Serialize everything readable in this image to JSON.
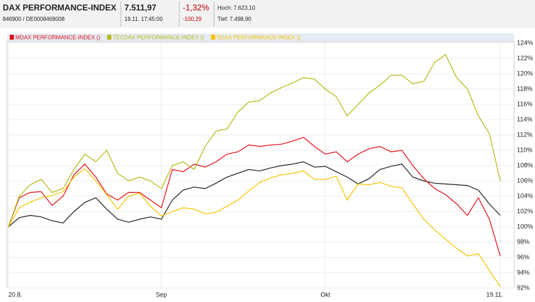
{
  "header": {
    "title": "DAX PERFORMANCE-INDEX",
    "ids": "846900 / DE0008469008",
    "price": "7.511,97",
    "time": "19.11. 17:45:00",
    "change_pct": "-1,32%",
    "change_abs": "-100,29",
    "high": "Hoch: 7.623,10",
    "low": "Tief: 7.498,90"
  },
  "chart_data": {
    "type": "line",
    "categories": [
      "20.8.",
      null,
      null,
      null,
      null,
      null,
      null,
      null,
      null,
      null,
      null,
      null,
      null,
      null,
      "Sep",
      null,
      null,
      null,
      null,
      null,
      null,
      null,
      null,
      null,
      null,
      null,
      null,
      null,
      null,
      "Okt",
      null,
      null,
      null,
      null,
      null,
      null,
      null,
      null,
      null,
      null,
      null,
      null,
      null,
      null,
      null,
      "19.11."
    ],
    "series": [
      {
        "color": "#222222",
        "values": [
          100,
          101.2,
          101.5,
          101.3,
          100.8,
          100.5,
          102,
          103.2,
          103.8,
          102.3,
          101,
          100.6,
          101,
          101.3,
          101,
          103.5,
          104.8,
          105.2,
          105,
          105.7,
          106.5,
          107,
          107.5,
          107.3,
          107.7,
          108,
          108.2,
          108.5,
          107.8,
          107.9,
          107.2,
          106.5,
          105.6,
          106.3,
          107.5,
          107.9,
          108.2,
          106.5,
          106,
          105.7,
          105.6,
          105.5,
          105.4,
          104.8,
          103,
          101.5
        ]
      },
      {
        "name": "MDAX PERFORMANCE-INDEX ()",
        "color": "#e0101a",
        "values": [
          100,
          103.8,
          104.5,
          104.6,
          102.8,
          104,
          106.8,
          108.2,
          106.5,
          104.3,
          103.5,
          104.5,
          104.5,
          103.5,
          102.5,
          107.5,
          107.2,
          108.2,
          107.8,
          108.5,
          109.5,
          109.8,
          110.7,
          110.5,
          110.7,
          110.8,
          111.2,
          111.7,
          110.5,
          109.5,
          109.8,
          108.5,
          109.5,
          110.2,
          110.5,
          109.8,
          110,
          108,
          106.3,
          105,
          104.2,
          103,
          101.5,
          103.8,
          101,
          96.2
        ]
      },
      {
        "name": "TECDAX PERFORMANCE-INDEX ()",
        "color": "#b8b818",
        "values": [
          100,
          104,
          105.5,
          106.2,
          104.5,
          105,
          107.5,
          109.5,
          108.5,
          110,
          107,
          106,
          106.5,
          106,
          105,
          108,
          108.5,
          107.5,
          110.5,
          112.5,
          112.8,
          115,
          116.3,
          116.5,
          117.5,
          118.2,
          118.8,
          119.5,
          119.3,
          118,
          117,
          114.5,
          116,
          117.5,
          118.5,
          119.8,
          119.8,
          118.7,
          119,
          121.5,
          122.5,
          119.5,
          118,
          114.5,
          112.2,
          106
        ]
      },
      {
        "name": "SDAX PERFORMANCE-INDEX ()",
        "color": "#f5c400",
        "values": [
          100,
          102.5,
          103.2,
          103.8,
          104.1,
          104.6,
          106.5,
          107.6,
          106,
          104.2,
          102.3,
          104,
          104.4,
          102.7,
          101.4,
          102,
          102.5,
          102.3,
          101.7,
          101.9,
          102.7,
          103.5,
          104.7,
          105.8,
          106.4,
          106.8,
          107,
          107.3,
          106.2,
          106.2,
          106.6,
          103.5,
          105.6,
          105.5,
          105.8,
          105.3,
          105.1,
          103,
          101,
          99.6,
          98.4,
          97.2,
          96.2,
          96.5,
          94.3,
          92.2
        ]
      }
    ],
    "ylim": [
      92,
      125
    ],
    "yticks": [
      {
        "value": 92,
        "label": "92%"
      },
      {
        "value": 94,
        "label": "94%"
      },
      {
        "value": 96,
        "label": "96%"
      },
      {
        "value": 98,
        "label": "98%"
      },
      {
        "value": 100,
        "label": "100%"
      },
      {
        "value": 102,
        "label": "102%"
      },
      {
        "value": 104,
        "label": "104%"
      },
      {
        "value": 106,
        "label": "106%"
      },
      {
        "value": 108,
        "label": "108%"
      },
      {
        "value": 110,
        "label": "110%"
      },
      {
        "value": 112,
        "label": "112%"
      },
      {
        "value": 114,
        "label": "114%"
      },
      {
        "value": 116,
        "label": "116%"
      },
      {
        "value": 118,
        "label": "118%"
      },
      {
        "value": 120,
        "label": "120%"
      },
      {
        "value": 122,
        "label": "122%"
      },
      {
        "value": 124,
        "label": "124%"
      }
    ],
    "grid": true
  }
}
